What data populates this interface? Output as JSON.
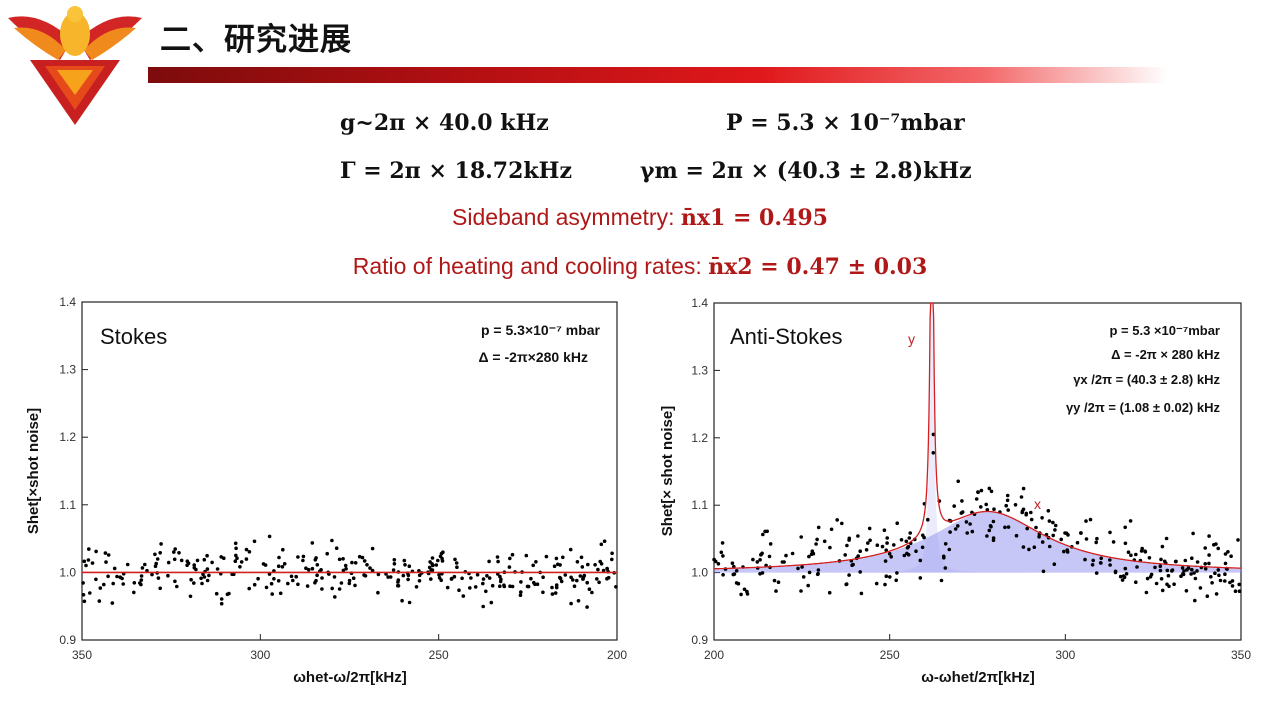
{
  "slide": {
    "title": "二、研究进展"
  },
  "params": {
    "g": "g~2π × 40.0 kHz",
    "pressure": "P = 5.3 × 10⁻⁷mbar",
    "gamma": "Γ = 2π × 18.72kHz",
    "gamma_m": "γm = 2π × (40.3 ± 2.8)kHz",
    "asym_label": "Sideband asymmetry:",
    "asym_value": "n̄x1 = 0.495",
    "ratio_label": "Ratio of heating and cooling rates:",
    "ratio_value": "n̄x2 = 0.47 ± 0.03"
  },
  "colors": {
    "accent_red": "#b01818",
    "fit_red": "#d42020",
    "fill_blue": "#8f8ff0"
  },
  "chart_data": [
    {
      "type": "scatter",
      "panel_label": "Stokes",
      "annotations": [
        "p = 5.3×10⁻⁷ mbar",
        "Δ = -2π×280 kHz"
      ],
      "xlabel": "ωhet-ω/2π[kHz]",
      "ylabel": "Shet[×shot noise]",
      "xlim": [
        350,
        200
      ],
      "ylim": [
        0.9,
        1.4
      ],
      "xticks": [
        "350",
        "300",
        "250",
        "200"
      ],
      "yticks": [
        "0.9",
        "1.0",
        "1.1",
        "1.2",
        "1.3",
        "1.4"
      ],
      "series": [
        {
          "kind": "points",
          "x_range": [
            350,
            200
          ],
          "baseline": 1.0,
          "noise": 0.02,
          "count": 330
        },
        {
          "kind": "fit-line",
          "y": 1.0
        }
      ]
    },
    {
      "type": "scatter",
      "panel_label": "Anti-Stokes",
      "annotations": [
        "p = 5.3 ×10⁻⁷mbar",
        "Δ = -2π × 280 kHz",
        "γx /2π = (40.3 ± 2.8) kHz",
        "γy /2π = (1.08 ± 0.02) kHz"
      ],
      "peak_labels": [
        "y",
        "x"
      ],
      "xlabel": "ω-ωhet/2π[kHz]",
      "ylabel": "Shet[× shot noise]",
      "xlim": [
        200,
        350
      ],
      "ylim": [
        0.9,
        1.4
      ],
      "xticks": [
        "200",
        "250",
        "300",
        "350"
      ],
      "yticks": [
        "0.9",
        "1.0",
        "1.1",
        "1.2",
        "1.3",
        "1.4"
      ],
      "peaks": [
        {
          "name": "y",
          "center": 262,
          "width_khz": 1.08,
          "height": 0.6
        },
        {
          "name": "x",
          "center": 278,
          "width_khz": 40.3,
          "height": 0.09
        }
      ],
      "series": [
        {
          "kind": "points",
          "x_range": [
            200,
            350
          ],
          "baseline": 1.0,
          "noise": 0.025,
          "count": 330
        },
        {
          "kind": "fit-line",
          "model": "sum of two Lorentzians"
        }
      ]
    }
  ]
}
